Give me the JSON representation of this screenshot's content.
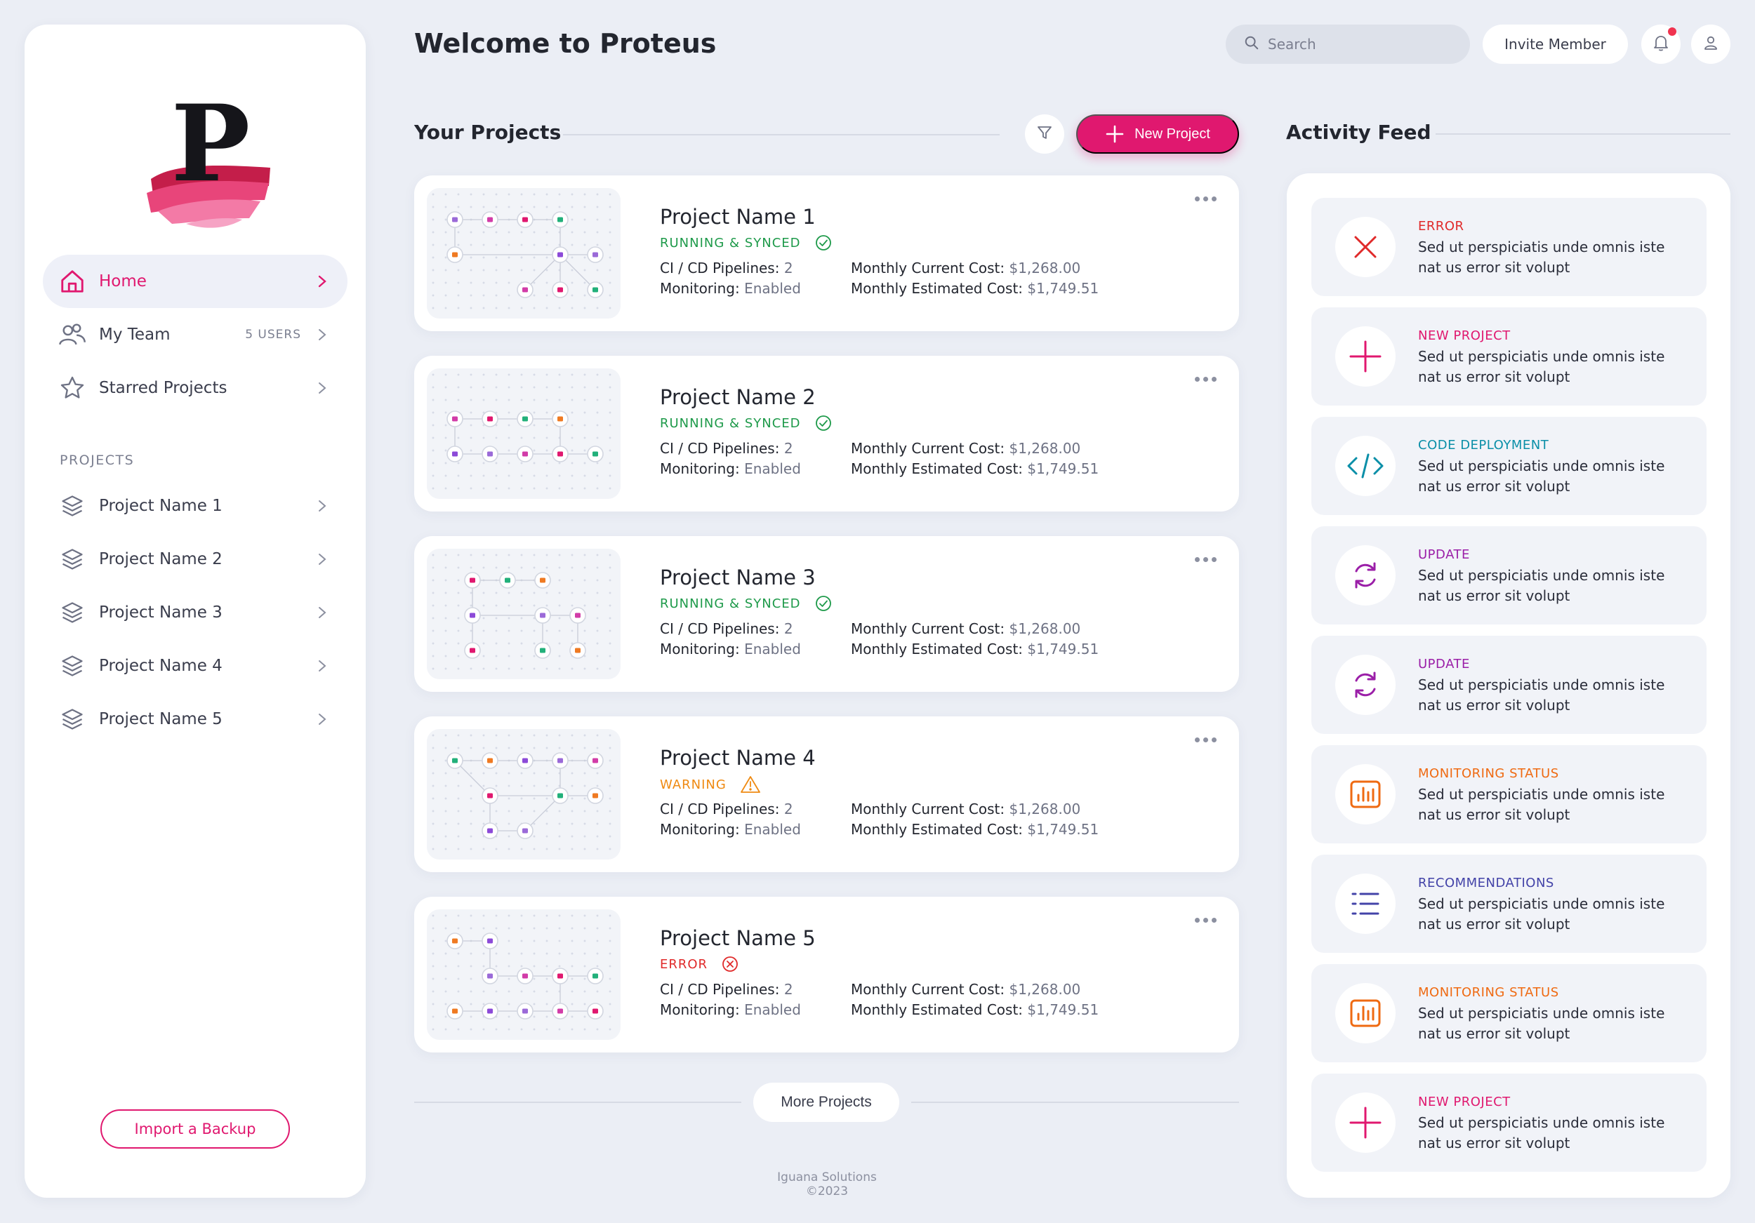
{
  "app": {
    "title": "Welcome to Proteus",
    "logo_letter": "P"
  },
  "header": {
    "search_placeholder": "Search",
    "invite_label": "Invite Member",
    "notification_icon": "bell-icon",
    "profile_icon": "user-icon"
  },
  "sidebar": {
    "nav": [
      {
        "label": "Home",
        "icon": "home-icon",
        "active": true,
        "count": ""
      },
      {
        "label": "My Team",
        "icon": "team-icon",
        "active": false,
        "count": "5 USERS"
      },
      {
        "label": "Starred Projects",
        "icon": "star-icon",
        "active": false,
        "count": ""
      }
    ],
    "projects_heading": "PROJECTS",
    "projects": [
      {
        "label": "Project Name 1"
      },
      {
        "label": "Project Name 2"
      },
      {
        "label": "Project Name 3"
      },
      {
        "label": "Project Name 4"
      },
      {
        "label": "Project Name 5"
      }
    ],
    "import_label": "Import a Backup"
  },
  "projects_section": {
    "title": "Your Projects",
    "new_project_label": "New Project",
    "more_label": "More Projects",
    "footer": "Iguana Solutions ©2023",
    "cards": [
      {
        "name": "Project Name 1",
        "status": "RUNNING & SYNCED",
        "status_kind": "ok",
        "pipelines_label": "CI / CD Pipelines:",
        "pipelines": "2",
        "monitoring_label": "Monitoring:",
        "monitoring": "Enabled",
        "current_label": "Monthly Current Cost:",
        "current": "$1,268.00",
        "estimated_label": "Monthly Estimated Cost:",
        "estimated": "$1,749.51"
      },
      {
        "name": "Project Name 2",
        "status": "RUNNING & SYNCED",
        "status_kind": "ok",
        "pipelines_label": "CI / CD Pipelines:",
        "pipelines": "2",
        "monitoring_label": "Monitoring:",
        "monitoring": "Enabled",
        "current_label": "Monthly Current Cost:",
        "current": "$1,268.00",
        "estimated_label": "Monthly Estimated Cost:",
        "estimated": "$1,749.51"
      },
      {
        "name": "Project Name 3",
        "status": "RUNNING & SYNCED",
        "status_kind": "ok",
        "pipelines_label": "CI / CD Pipelines:",
        "pipelines": "2",
        "monitoring_label": "Monitoring:",
        "monitoring": "Enabled",
        "current_label": "Monthly Current Cost:",
        "current": "$1,268.00",
        "estimated_label": "Monthly Estimated Cost:",
        "estimated": "$1,749.51"
      },
      {
        "name": "Project Name 4",
        "status": "WARNING",
        "status_kind": "warn",
        "pipelines_label": "CI / CD Pipelines:",
        "pipelines": "2",
        "monitoring_label": "Monitoring:",
        "monitoring": "Enabled",
        "current_label": "Monthly Current Cost:",
        "current": "$1,268.00",
        "estimated_label": "Monthly Estimated Cost:",
        "estimated": "$1,749.51"
      },
      {
        "name": "Project Name 5",
        "status": "ERROR",
        "status_kind": "error",
        "pipelines_label": "CI / CD Pipelines:",
        "pipelines": "2",
        "monitoring_label": "Monitoring:",
        "monitoring": "Enabled",
        "current_label": "Monthly Current Cost:",
        "current": "$1,268.00",
        "estimated_label": "Monthly Estimated Cost:",
        "estimated": "$1,749.51"
      }
    ]
  },
  "activity": {
    "title": "Activity Feed",
    "items": [
      {
        "type": "ERROR",
        "kind": "error",
        "icon": "close-icon",
        "color": "#e02a2a",
        "text": "Sed ut perspiciatis unde omnis iste nat us error sit volupt"
      },
      {
        "type": "NEW PROJECT",
        "kind": "new",
        "icon": "plus-icon",
        "color": "#e0186f",
        "text": "Sed ut perspiciatis unde omnis iste nat us error sit volupt"
      },
      {
        "type": "CODE DEPLOYMENT",
        "kind": "code",
        "icon": "code-icon",
        "color": "#0b8fa8",
        "text": "Sed ut perspiciatis unde omnis iste nat us error sit volupt"
      },
      {
        "type": "UPDATE",
        "kind": "update",
        "icon": "refresh-icon",
        "color": "#9b1fa8",
        "text": "Sed ut perspiciatis unde omnis iste nat us error sit volupt"
      },
      {
        "type": "UPDATE",
        "kind": "update",
        "icon": "refresh-icon",
        "color": "#9b1fa8",
        "text": "Sed ut perspiciatis unde omnis iste nat us error sit volupt"
      },
      {
        "type": "MONITORING STATUS",
        "kind": "monitor",
        "icon": "chart-icon",
        "color": "#ef6a12",
        "text": "Sed ut perspiciatis unde omnis iste nat us error sit volupt"
      },
      {
        "type": "RECOMMENDATIONS",
        "kind": "recommend",
        "icon": "list-icon",
        "color": "#4343a8",
        "text": "Sed ut perspiciatis unde omnis iste nat us error sit volupt"
      },
      {
        "type": "MONITORING STATUS",
        "kind": "monitor",
        "icon": "chart-icon",
        "color": "#ef6a12",
        "text": "Sed ut perspiciatis unde omnis iste nat us error sit volupt"
      },
      {
        "type": "NEW PROJECT",
        "kind": "new",
        "icon": "plus-icon",
        "color": "#e0186f",
        "text": "Sed ut perspiciatis unde omnis iste nat us error sit volupt"
      }
    ]
  },
  "colors": {
    "accent": "#e0186f",
    "ok": "#1e9a4a",
    "warn": "#ef8a12",
    "error": "#e02a2a"
  }
}
